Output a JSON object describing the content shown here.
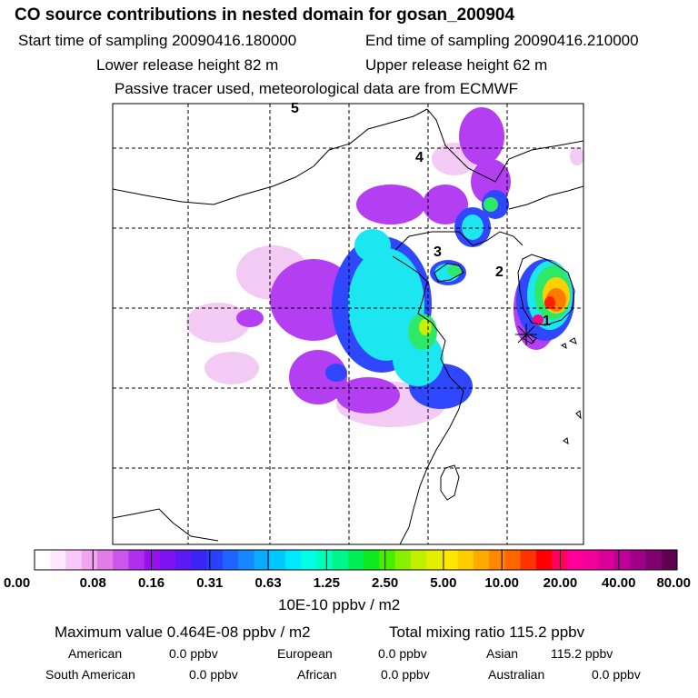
{
  "header": {
    "title": "CO  source contributions in nested domain for gosan_200904",
    "start_sampling": "Start time of sampling 20090416.180000",
    "end_sampling": "End time of sampling 20090416.210000",
    "lower_release": "Lower release height   82 m",
    "upper_release": "Upper release height   62 m",
    "tracer_note": "Passive tracer used, meteorological data are from ECMWF"
  },
  "map": {
    "trajectory_labels": [
      "1",
      "2",
      "3",
      "4",
      "5"
    ],
    "receptor_marker": "star-marker"
  },
  "colorbar": {
    "tick_labels": [
      "0.00",
      "0.08",
      "0.16",
      "0.31",
      "0.63",
      "1.25",
      "2.50",
      "5.00",
      "10.00",
      "20.00",
      "40.00",
      "80.00"
    ],
    "colors": [
      "#ffffff",
      "#fde8fd",
      "#f8c8f8",
      "#f2a6f2",
      "#e27ce6",
      "#cc55ee",
      "#b22eef",
      "#9a10ea",
      "#7f12f0",
      "#5d18f4",
      "#3b22f7",
      "#2a40ff",
      "#1e64ff",
      "#1688ff",
      "#0aaaff",
      "#00c8ff",
      "#00e8ff",
      "#00ffe4",
      "#00ffb8",
      "#00f58a",
      "#00ee55",
      "#10e820",
      "#46ee00",
      "#88f000",
      "#c0f000",
      "#e6ee00",
      "#ffe800",
      "#ffcc00",
      "#ffaa00",
      "#ff8800",
      "#ff6600",
      "#ff3300",
      "#ff0000",
      "#ff0060",
      "#ff0099",
      "#f20099",
      "#d80099",
      "#be0099",
      "#a00088",
      "#800070",
      "#600050"
    ],
    "unit": "10E-10 ppbv / m2"
  },
  "summary": {
    "max_value": "Maximum value  0.464E-08 ppbv / m2",
    "total_mixing": "Total mixing ratio       115.2 ppbv",
    "regions": [
      {
        "name": "American",
        "value": "0.0 ppbv"
      },
      {
        "name": "European",
        "value": "0.0 ppbv"
      },
      {
        "name": "Asian",
        "value": "115.2 ppbv"
      },
      {
        "name": "South American",
        "value": "0.0 ppbv"
      },
      {
        "name": "African",
        "value": "0.0 ppbv"
      },
      {
        "name": "Australian",
        "value": "0.0 ppbv"
      }
    ]
  }
}
